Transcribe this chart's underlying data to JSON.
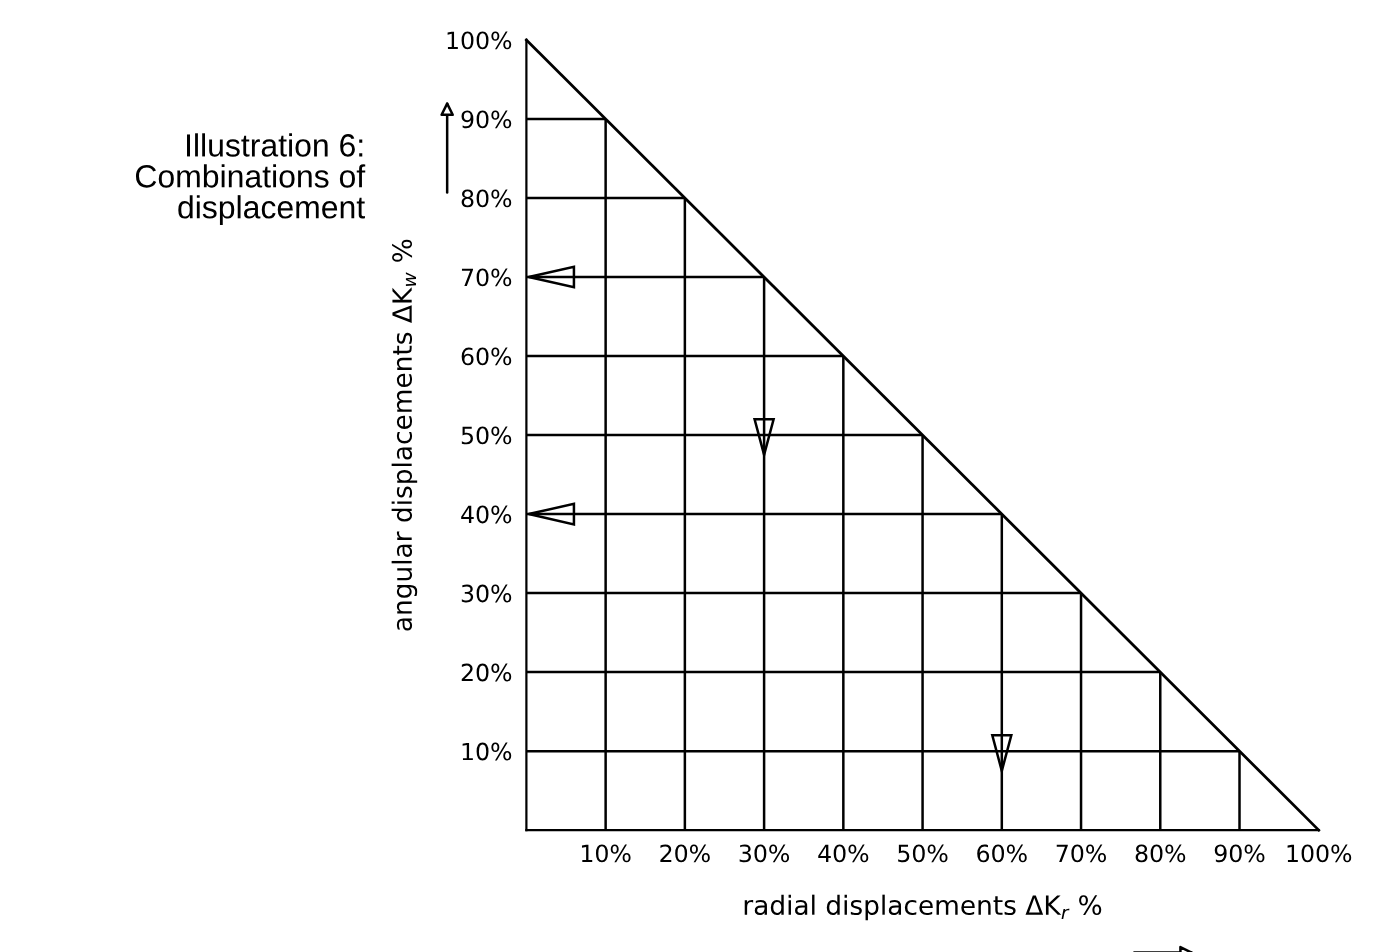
{
  "chart_data": {
    "type": "line",
    "annotations": [
      "Illustration 6:\nCombinations of\ndisplacement"
    ],
    "xlabel": "radial displacements ΔK$_{r}$ %",
    "ylabel": "angular displacements ΔK$_{w}$ %",
    "x": [
      0,
      100
    ],
    "series": [
      {
        "color": "#000000",
        "values": [
          100,
          0
        ]
      }
    ],
    "xlim": [
      0,
      100
    ],
    "ylim": [
      0,
      100
    ],
    "xticks": [
      {
        "value": 10,
        "label": "10%"
      },
      {
        "value": 20,
        "label": "20%"
      },
      {
        "value": 30,
        "label": "30%"
      },
      {
        "value": 40,
        "label": "40%"
      },
      {
        "value": 50,
        "label": "50%"
      },
      {
        "value": 60,
        "label": "60%"
      },
      {
        "value": 70,
        "label": "70%"
      },
      {
        "value": 80,
        "label": "80%"
      },
      {
        "value": 90,
        "label": "90%"
      },
      {
        "value": 100,
        "label": "100%"
      }
    ],
    "yticks": [
      {
        "value": 10,
        "label": "10%"
      },
      {
        "value": 20,
        "label": "20%"
      },
      {
        "value": 30,
        "label": "30%"
      },
      {
        "value": 40,
        "label": "40%"
      },
      {
        "value": 50,
        "label": "50%"
      },
      {
        "value": 60,
        "label": "60%"
      },
      {
        "value": 70,
        "label": "70%"
      },
      {
        "value": 80,
        "label": "80%"
      },
      {
        "value": 90,
        "label": "90%"
      },
      {
        "value": 100,
        "label": "100%"
      }
    ],
    "grid": true
  }
}
